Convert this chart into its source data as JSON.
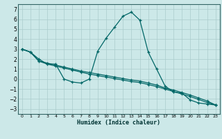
{
  "xlabel": "Humidex (Indice chaleur)",
  "bg_color": "#cce8e8",
  "grid_color": "#aacccc",
  "line_color": "#006666",
  "xlim": [
    -0.5,
    23.5
  ],
  "ylim": [
    -3.5,
    7.5
  ],
  "xticks": [
    0,
    1,
    2,
    3,
    4,
    5,
    6,
    7,
    8,
    9,
    10,
    11,
    12,
    13,
    14,
    15,
    16,
    17,
    18,
    19,
    20,
    21,
    22,
    23
  ],
  "yticks": [
    -3,
    -2,
    -1,
    0,
    1,
    2,
    3,
    4,
    5,
    6,
    7
  ],
  "line1_x": [
    0,
    1,
    2,
    3,
    4,
    5,
    6,
    7,
    8,
    9,
    10,
    11,
    12,
    13,
    14,
    15,
    16,
    17,
    18,
    19,
    20,
    21,
    22,
    23
  ],
  "line1_y": [
    3.0,
    2.7,
    2.0,
    1.5,
    1.5,
    0.0,
    -0.3,
    -0.4,
    0.0,
    2.8,
    4.1,
    5.2,
    6.3,
    6.7,
    5.9,
    2.7,
    1.0,
    -0.7,
    -1.3,
    -1.4,
    -2.1,
    -2.4,
    -2.5,
    -2.6
  ],
  "line2_x": [
    0,
    1,
    2,
    3,
    4,
    5,
    6,
    7,
    8,
    9,
    10,
    11,
    12,
    13,
    14,
    15,
    16,
    17,
    18,
    19,
    20,
    21,
    22,
    23
  ],
  "line2_y": [
    3.0,
    2.7,
    1.8,
    1.6,
    1.4,
    1.2,
    1.0,
    0.8,
    0.65,
    0.5,
    0.35,
    0.2,
    0.05,
    -0.1,
    -0.2,
    -0.4,
    -0.6,
    -0.9,
    -1.1,
    -1.35,
    -1.6,
    -1.9,
    -2.2,
    -2.6
  ],
  "line3_x": [
    0,
    1,
    2,
    3,
    4,
    5,
    6,
    7,
    8,
    9,
    10,
    11,
    12,
    13,
    14,
    15,
    16,
    17,
    18,
    19,
    20,
    21,
    22,
    23
  ],
  "line3_y": [
    3.0,
    2.7,
    1.8,
    1.5,
    1.3,
    1.1,
    0.9,
    0.7,
    0.5,
    0.35,
    0.2,
    0.05,
    -0.1,
    -0.25,
    -0.35,
    -0.55,
    -0.75,
    -1.0,
    -1.25,
    -1.5,
    -1.75,
    -2.05,
    -2.35,
    -2.6
  ]
}
